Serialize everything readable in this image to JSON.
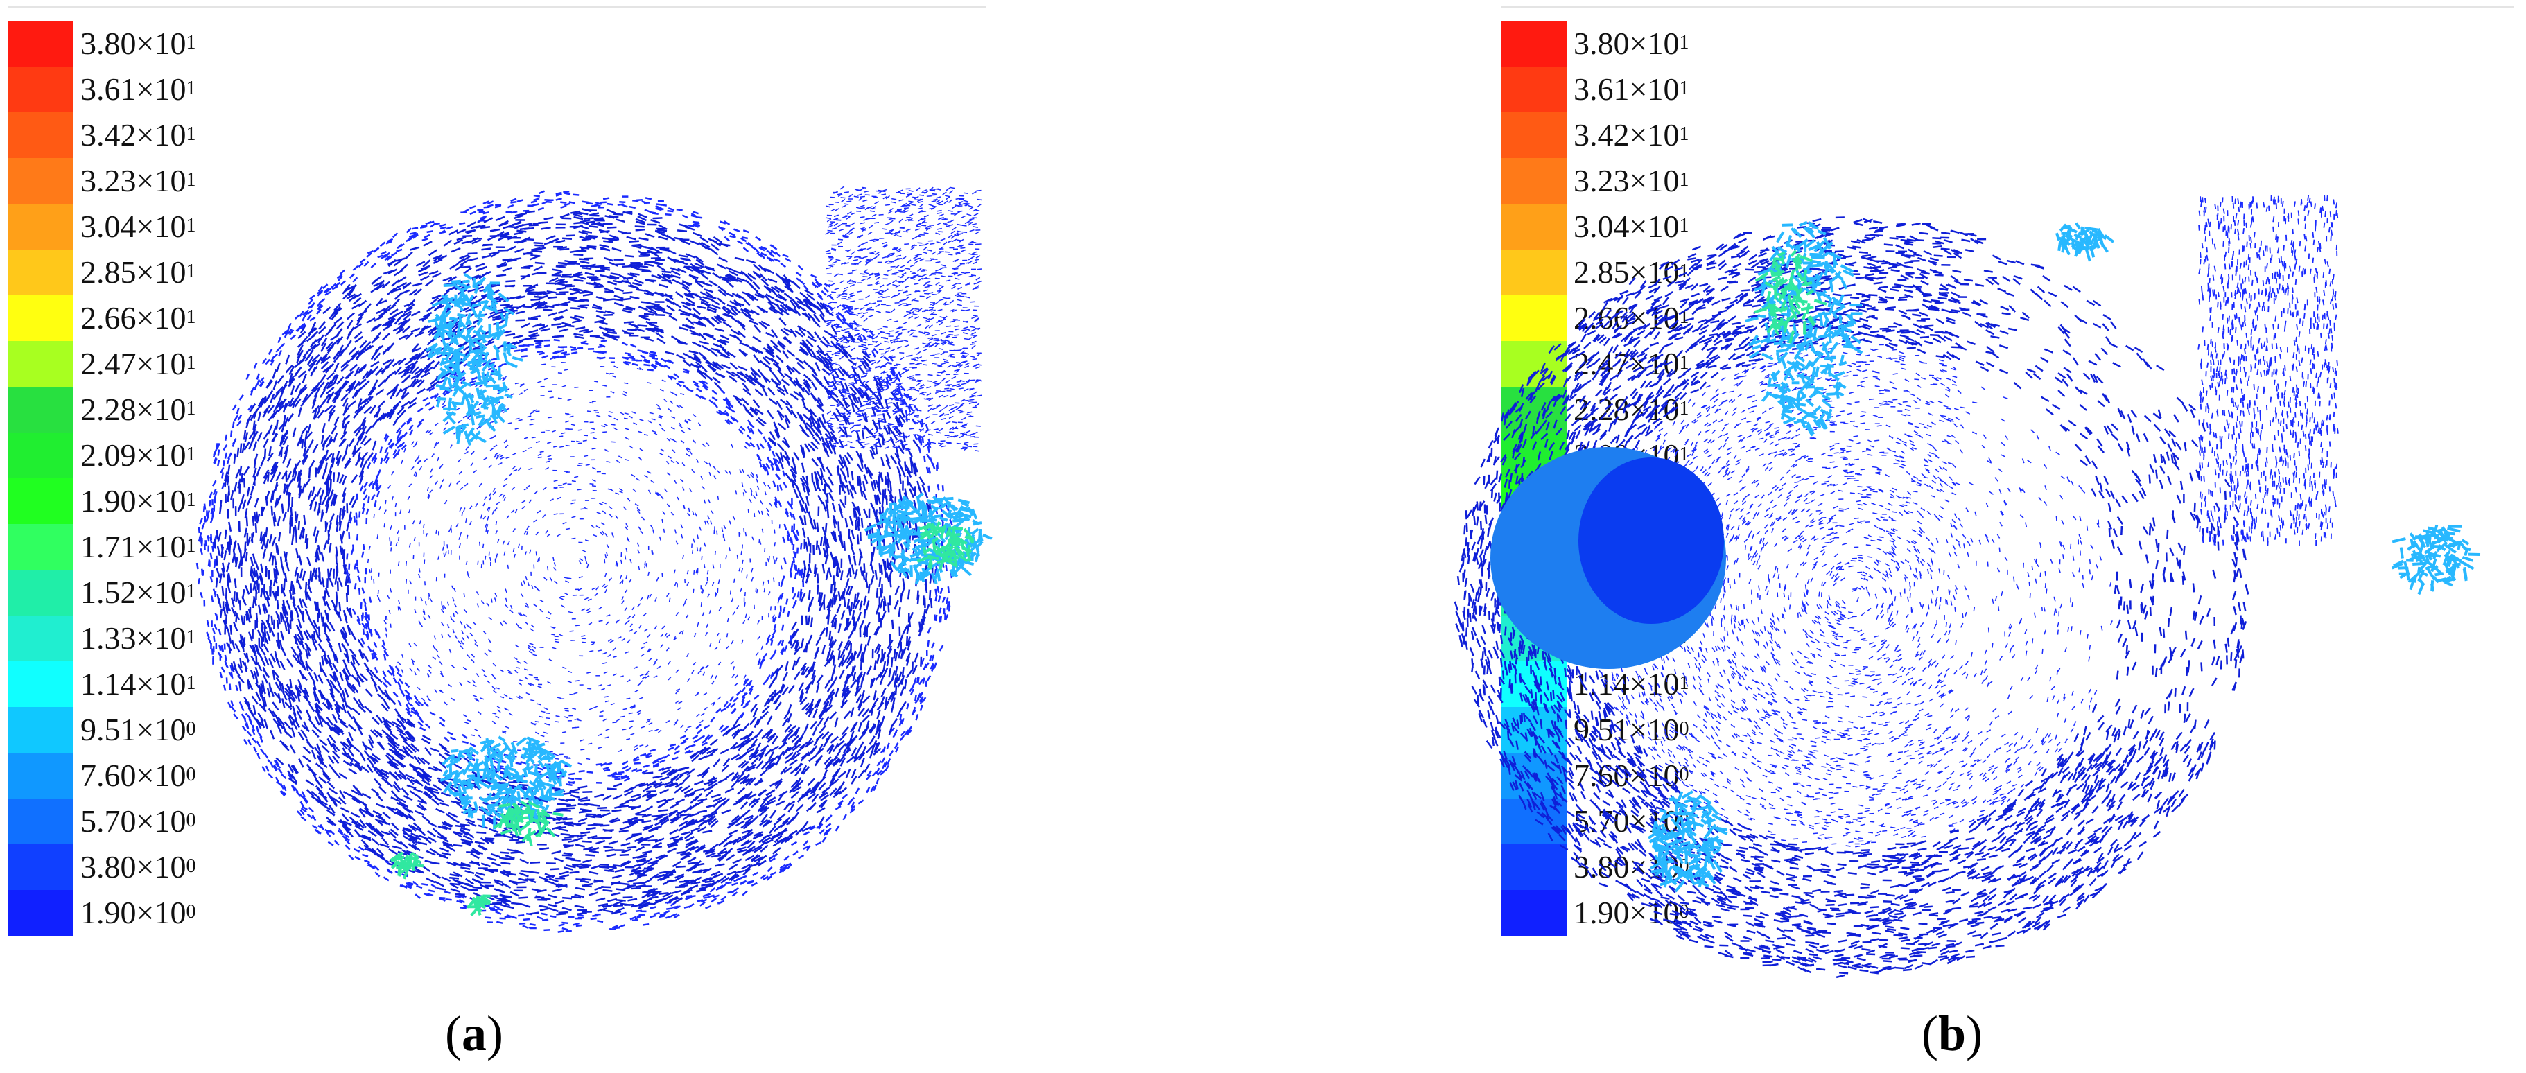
{
  "legend": {
    "colors": [
      "#ff1a10",
      "#ff3a12",
      "#ff5a14",
      "#ff7a18",
      "#ffa018",
      "#ffc81a",
      "#ffff10",
      "#a8ff20",
      "#28e040",
      "#20ee30",
      "#20ff20",
      "#30ff60",
      "#20eea8",
      "#20eed0",
      "#10ffff",
      "#10c8ff",
      "#1098ff",
      "#1070ff",
      "#1040ff",
      "#1020ff"
    ],
    "entries": [
      {
        "mantissa": "3.80",
        "exponent": "1"
      },
      {
        "mantissa": "3.61",
        "exponent": "1"
      },
      {
        "mantissa": "3.42",
        "exponent": "1"
      },
      {
        "mantissa": "3.23",
        "exponent": "1"
      },
      {
        "mantissa": "3.04",
        "exponent": "1"
      },
      {
        "mantissa": "2.85",
        "exponent": "1"
      },
      {
        "mantissa": "2.66",
        "exponent": "1"
      },
      {
        "mantissa": "2.47",
        "exponent": "1"
      },
      {
        "mantissa": "2.28",
        "exponent": "1"
      },
      {
        "mantissa": "2.09",
        "exponent": "1"
      },
      {
        "mantissa": "1.90",
        "exponent": "1"
      },
      {
        "mantissa": "1.71",
        "exponent": "1"
      },
      {
        "mantissa": "1.52",
        "exponent": "1"
      },
      {
        "mantissa": "1.33",
        "exponent": "1"
      },
      {
        "mantissa": "1.14",
        "exponent": "1"
      },
      {
        "mantissa": "9.51",
        "exponent": "0"
      },
      {
        "mantissa": "7.60",
        "exponent": "0"
      },
      {
        "mantissa": "5.70",
        "exponent": "0"
      },
      {
        "mantissa": "3.80",
        "exponent": "0"
      },
      {
        "mantissa": "1.90",
        "exponent": "0"
      }
    ],
    "times_sign": "×10"
  },
  "panels": [
    {
      "id": "a",
      "caption_letter": "a"
    },
    {
      "id": "b",
      "caption_letter": "b"
    }
  ],
  "colors": {
    "vector_main": "#1a2bff",
    "vector_dense": "#0f1fd8",
    "highlight_cyan": "#28b8ff",
    "highlight_green": "#30e8a0",
    "blob_light": "#1e7ef0",
    "blob_dark": "#0a3cf0"
  }
}
